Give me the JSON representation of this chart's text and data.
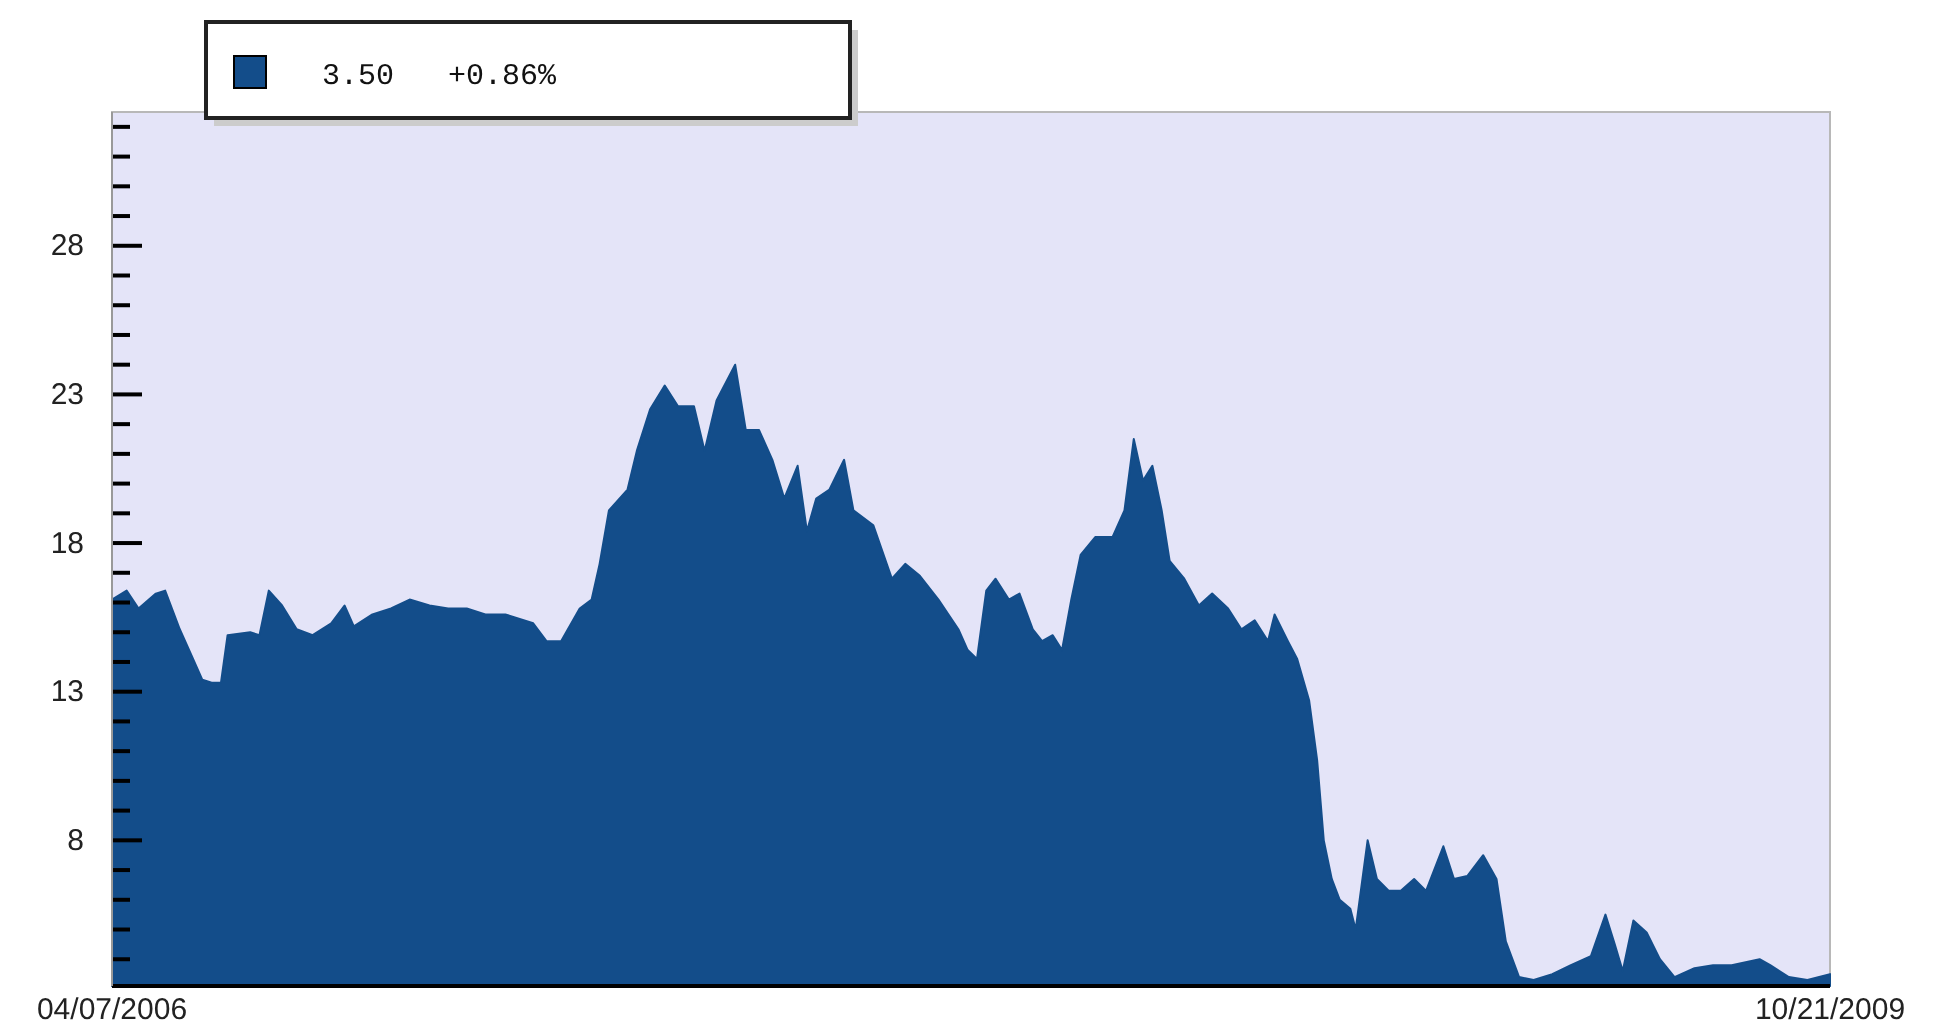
{
  "chart_data": {
    "type": "area",
    "annotations": [
      "3.50   +0.86%"
    ],
    "xlim": [
      "2006-04-07",
      "2009-10-21"
    ],
    "xticks": [
      {
        "value": "2006-04-07",
        "label": "04/07/2006"
      },
      {
        "value": "2009-10-21",
        "label": "10/21/2009"
      }
    ],
    "ylim": [
      3.1,
      32.5
    ],
    "yticks": [
      {
        "value": 4,
        "label": null
      },
      {
        "value": 5,
        "label": null
      },
      {
        "value": 6,
        "label": null
      },
      {
        "value": 7,
        "label": null
      },
      8,
      {
        "value": 9,
        "label": null
      },
      {
        "value": 10,
        "label": null
      },
      {
        "value": 11,
        "label": null
      },
      {
        "value": 12,
        "label": null
      },
      13,
      {
        "value": 14,
        "label": null
      },
      {
        "value": 15,
        "label": null
      },
      {
        "value": 16,
        "label": null
      },
      {
        "value": 17,
        "label": null
      },
      18,
      {
        "value": 19,
        "label": null
      },
      {
        "value": 20,
        "label": null
      },
      {
        "value": 21,
        "label": null
      },
      {
        "value": 22,
        "label": null
      },
      23,
      {
        "value": 24,
        "label": null
      },
      {
        "value": 25,
        "label": null
      },
      {
        "value": 26,
        "label": null
      },
      {
        "value": 27,
        "label": null
      },
      28,
      {
        "value": 29,
        "label": null
      },
      {
        "value": 30,
        "label": null
      },
      {
        "value": 31,
        "label": null
      },
      {
        "value": 32,
        "label": null
      }
    ],
    "grid": false,
    "series": [
      {
        "color": "#134d8a",
        "x": [
          "2006-04-07",
          "2006-04-18",
          "2006-04-27",
          "2006-05-10",
          "2006-05-17",
          "2006-05-28",
          "2006-06-07",
          "2006-06-14",
          "2006-06-21",
          "2006-06-28",
          "2006-07-03",
          "2006-07-20",
          "2006-07-27",
          "2006-08-03",
          "2006-08-13",
          "2006-08-24",
          "2006-09-05",
          "2006-09-19",
          "2006-09-29",
          "2006-10-06",
          "2006-10-20",
          "2006-11-03",
          "2006-11-17",
          "2006-12-02",
          "2006-12-16",
          "2006-12-30",
          "2007-01-13",
          "2007-01-28",
          "2007-02-18",
          "2007-02-28",
          "2007-03-11",
          "2007-03-25",
          "2007-04-03",
          "2007-04-09",
          "2007-04-16",
          "2007-04-30",
          "2007-05-07",
          "2007-05-17",
          "2007-05-28",
          "2007-06-07",
          "2007-06-19",
          "2007-06-27",
          "2007-07-06",
          "2007-07-20",
          "2007-07-28",
          "2007-08-07",
          "2007-08-17",
          "2007-08-26",
          "2007-09-05",
          "2007-09-12",
          "2007-09-19",
          "2007-09-29",
          "2007-10-10",
          "2007-10-17",
          "2007-11-01",
          "2007-11-15",
          "2007-11-25",
          "2007-12-06",
          "2007-12-20",
          "2008-01-04",
          "2008-01-11",
          "2008-01-18",
          "2008-01-25",
          "2008-02-01",
          "2008-02-11",
          "2008-02-19",
          "2008-02-29",
          "2008-03-07",
          "2008-03-15",
          "2008-03-22",
          "2008-03-29",
          "2008-04-05",
          "2008-04-16",
          "2008-04-29",
          "2008-05-08",
          "2008-05-15",
          "2008-05-22",
          "2008-05-29",
          "2008-06-05",
          "2008-06-11",
          "2008-06-22",
          "2008-07-03",
          "2008-07-13",
          "2008-07-25",
          "2008-08-04",
          "2008-08-14",
          "2008-08-24",
          "2008-08-29",
          "2008-09-08",
          "2008-09-15",
          "2008-09-24",
          "2008-09-30",
          "2008-10-05",
          "2008-10-11",
          "2008-10-17",
          "2008-10-25",
          "2008-10-29",
          "2008-11-07",
          "2008-11-14",
          "2008-11-23",
          "2008-12-02",
          "2008-12-12",
          "2008-12-21",
          "2009-01-03",
          "2009-01-11",
          "2009-01-21",
          "2009-02-02",
          "2009-02-12",
          "2009-02-19",
          "2009-03-01",
          "2009-03-12",
          "2009-03-26",
          "2009-04-09",
          "2009-04-24",
          "2009-05-05",
          "2009-05-12",
          "2009-05-18",
          "2009-05-26",
          "2009-06-05",
          "2009-06-15",
          "2009-06-26",
          "2009-07-11",
          "2009-07-25",
          "2009-08-08",
          "2009-08-29",
          "2009-09-06",
          "2009-09-20",
          "2009-10-04",
          "2009-10-21"
        ],
        "values": [
          16.1,
          16.4,
          15.8,
          16.3,
          16.4,
          15.1,
          14.1,
          13.4,
          13.3,
          13.3,
          14.9,
          15.0,
          14.9,
          16.4,
          15.9,
          15.1,
          14.9,
          15.3,
          15.9,
          15.2,
          15.6,
          15.8,
          16.1,
          15.9,
          15.8,
          15.8,
          15.6,
          15.6,
          15.3,
          14.7,
          14.7,
          15.8,
          16.1,
          17.3,
          19.1,
          19.8,
          21.1,
          22.5,
          23.3,
          22.6,
          22.6,
          21.1,
          22.8,
          24.0,
          21.8,
          21.8,
          20.8,
          19.5,
          20.6,
          18.4,
          19.5,
          19.8,
          20.8,
          19.1,
          18.6,
          16.8,
          17.3,
          16.9,
          16.1,
          15.1,
          14.4,
          14.1,
          16.4,
          16.8,
          16.1,
          16.3,
          15.1,
          14.7,
          14.9,
          14.4,
          16.1,
          17.6,
          18.2,
          18.2,
          19.1,
          21.5,
          20.1,
          20.6,
          19.1,
          17.4,
          16.8,
          15.9,
          16.3,
          15.8,
          15.1,
          15.4,
          14.7,
          15.6,
          14.7,
          14.1,
          12.7,
          10.7,
          8.0,
          6.7,
          6.0,
          5.7,
          5.0,
          8.0,
          6.7,
          6.3,
          6.3,
          6.7,
          6.3,
          7.8,
          6.7,
          6.8,
          7.5,
          6.7,
          4.6,
          3.4,
          3.3,
          3.5,
          3.8,
          4.1,
          5.5,
          4.5,
          3.6,
          5.3,
          4.9,
          4.0,
          3.4,
          3.7,
          3.8,
          3.8,
          4.0,
          3.8,
          3.4,
          3.3,
          3.5
        ]
      }
    ]
  }
}
